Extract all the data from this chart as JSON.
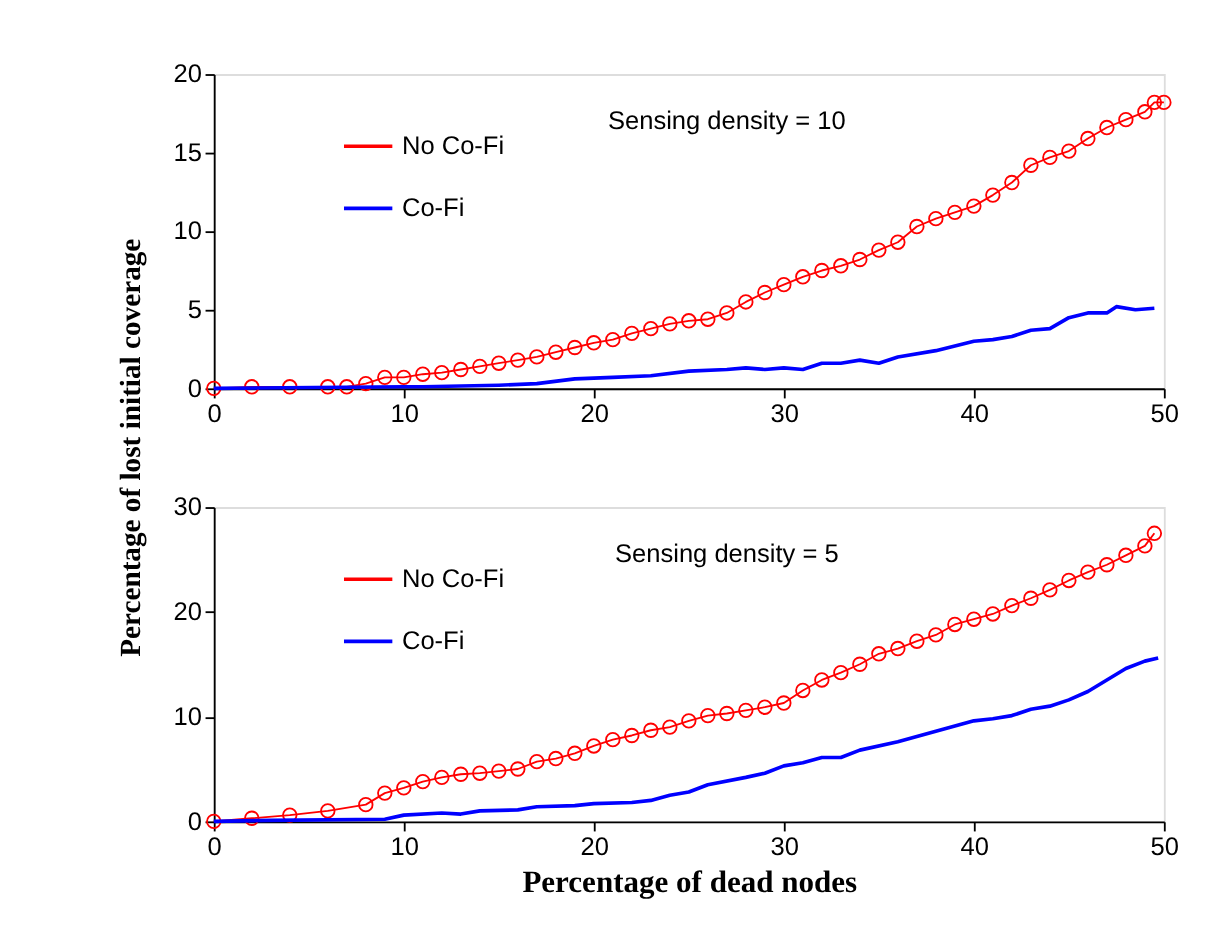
{
  "chart_data": [
    {
      "type": "line",
      "ylabel": "Percentage of lost initial coverage",
      "annotations": [
        "Sensing density = 10"
      ],
      "xlim": [
        0,
        50
      ],
      "xticks": [
        0,
        10,
        20,
        30,
        40,
        50
      ],
      "ylim": [
        0,
        20
      ],
      "yticks": [
        0,
        5,
        10,
        15,
        20
      ],
      "grid": false,
      "legend": "top left",
      "tick_labels": true,
      "series": [
        {
          "name": "No Co-Fi",
          "color": "#ff0000",
          "marker": "circle",
          "x": [
            0,
            2,
            4,
            6,
            7,
            8,
            9,
            10,
            11,
            12,
            13,
            14,
            15,
            16,
            17,
            18,
            19,
            20,
            21,
            22,
            23,
            24,
            25,
            26,
            27,
            28,
            29,
            30,
            31,
            32,
            33,
            34,
            35,
            36,
            37,
            38,
            39,
            40,
            41,
            42,
            43,
            44,
            45,
            46,
            47,
            48,
            49,
            49.5,
            50
          ],
          "values": [
            0,
            0.1,
            0.1,
            0.1,
            0.1,
            0.3,
            0.7,
            0.7,
            0.9,
            1.0,
            1.2,
            1.4,
            1.6,
            1.8,
            2.0,
            2.3,
            2.6,
            2.9,
            3.1,
            3.5,
            3.8,
            4.1,
            4.3,
            4.4,
            4.8,
            5.5,
            6.1,
            6.6,
            7.1,
            7.5,
            7.8,
            8.2,
            8.8,
            9.3,
            10.3,
            10.8,
            11.2,
            11.6,
            12.3,
            13.1,
            14.2,
            14.7,
            15.1,
            15.9,
            16.6,
            17.1,
            17.6,
            18.2,
            18.2
          ]
        },
        {
          "name": "Co-Fi",
          "color": "#0000ff",
          "marker": "none",
          "x": [
            0,
            10,
            11,
            15,
            17,
            19,
            21,
            23,
            25,
            27,
            28,
            29,
            30,
            31,
            32,
            33,
            34,
            35,
            36,
            38,
            40,
            41,
            42,
            43,
            44,
            45,
            46,
            47,
            47.5,
            48.5,
            49.5
          ],
          "values": [
            0,
            0.1,
            0.1,
            0.2,
            0.3,
            0.6,
            0.7,
            0.8,
            1.1,
            1.2,
            1.3,
            1.2,
            1.3,
            1.2,
            1.6,
            1.6,
            1.8,
            1.6,
            2.0,
            2.4,
            3.0,
            3.1,
            3.3,
            3.7,
            3.8,
            4.5,
            4.8,
            4.8,
            5.2,
            5.0,
            5.1
          ]
        }
      ]
    },
    {
      "type": "line",
      "xlabel": "Percentage of dead nodes",
      "annotations": [
        "Sensing density = 5"
      ],
      "xlim": [
        0,
        50
      ],
      "xticks": [
        0,
        10,
        20,
        30,
        40,
        50
      ],
      "ylim": [
        0,
        30
      ],
      "yticks": [
        0,
        10,
        20,
        30
      ],
      "grid": false,
      "legend": "top left",
      "series": [
        {
          "name": "No Co-Fi",
          "color": "#ff0000",
          "marker": "circle",
          "x": [
            0,
            2,
            4,
            6,
            8,
            9,
            10,
            11,
            12,
            13,
            14,
            15,
            16,
            17,
            18,
            19,
            20,
            21,
            22,
            23,
            24,
            25,
            26,
            27,
            28,
            29,
            30,
            31,
            32,
            33,
            34,
            35,
            36,
            37,
            38,
            39,
            40,
            41,
            42,
            43,
            44,
            45,
            46,
            47,
            48,
            49,
            49.5
          ],
          "values": [
            0,
            0.3,
            0.6,
            1.0,
            1.6,
            2.7,
            3.2,
            3.8,
            4.2,
            4.5,
            4.6,
            4.8,
            5.0,
            5.7,
            6.0,
            6.5,
            7.2,
            7.8,
            8.2,
            8.7,
            9.0,
            9.6,
            10.1,
            10.3,
            10.6,
            10.9,
            11.3,
            12.5,
            13.5,
            14.2,
            15.0,
            16.0,
            16.5,
            17.2,
            17.8,
            18.8,
            19.3,
            19.8,
            20.6,
            21.3,
            22.1,
            23.0,
            23.8,
            24.5,
            25.4,
            26.3,
            27.5
          ]
        },
        {
          "name": "Co-Fi",
          "color": "#0000ff",
          "marker": "none",
          "x": [
            0,
            3,
            9,
            10,
            12,
            13,
            14,
            16,
            17,
            19,
            20,
            22,
            23,
            24,
            25,
            26,
            28,
            29,
            30,
            31,
            32,
            33,
            34,
            36,
            38,
            39,
            40,
            41,
            42,
            43,
            44,
            45,
            46,
            47,
            48,
            49,
            49.7
          ],
          "values": [
            0,
            0.1,
            0.2,
            0.6,
            0.8,
            0.7,
            1.0,
            1.1,
            1.4,
            1.5,
            1.7,
            1.8,
            2.0,
            2.5,
            2.8,
            3.5,
            4.2,
            4.6,
            5.3,
            5.6,
            6.1,
            6.1,
            6.8,
            7.6,
            8.6,
            9.1,
            9.6,
            9.8,
            10.1,
            10.7,
            11.0,
            11.6,
            12.4,
            13.5,
            14.6,
            15.3,
            15.6
          ]
        }
      ]
    }
  ]
}
